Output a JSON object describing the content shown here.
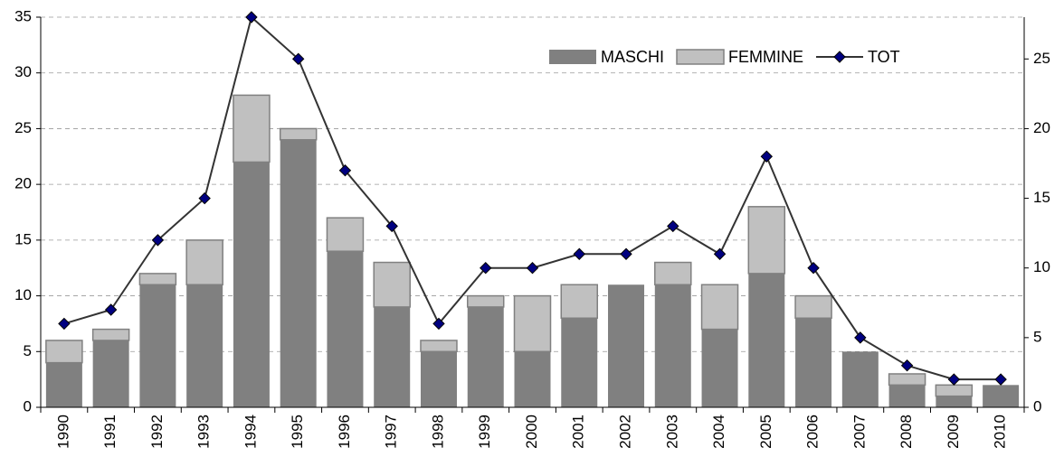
{
  "chart_data": {
    "type": "bar",
    "categories": [
      "1990",
      "1991",
      "1992",
      "1993",
      "1994",
      "1995",
      "1996",
      "1997",
      "1998",
      "1999",
      "2000",
      "2001",
      "2002",
      "2003",
      "2004",
      "2005",
      "2006",
      "2007",
      "2008",
      "2009",
      "2010"
    ],
    "series": [
      {
        "name": "MASCHI",
        "color": "#808080",
        "values": [
          4,
          6,
          11,
          11,
          22,
          24,
          14,
          9,
          5,
          9,
          5,
          8,
          11,
          11,
          7,
          12,
          8,
          5,
          2,
          1,
          2
        ]
      },
      {
        "name": "FEMMINE",
        "color": "#c0c0c0",
        "values": [
          2,
          1,
          1,
          4,
          6,
          1,
          3,
          4,
          1,
          1,
          5,
          3,
          0,
          2,
          4,
          6,
          2,
          0,
          1,
          1,
          0
        ]
      },
      {
        "name": "TOT",
        "type": "line",
        "axis": "y2",
        "color": "#000080",
        "values": [
          6,
          7,
          12,
          15,
          28,
          25,
          17,
          13,
          6,
          10,
          10,
          11,
          11,
          13,
          11,
          18,
          10,
          5,
          3,
          2,
          2
        ]
      }
    ],
    "ylim": [
      0,
      35
    ],
    "yticks": [
      0,
      5,
      10,
      15,
      20,
      25,
      30,
      35
    ],
    "y2lim": [
      0,
      28
    ],
    "y2ticks": [
      0,
      5,
      10,
      15,
      20,
      25
    ],
    "grid": true,
    "stacked": true,
    "legend": "top-right"
  }
}
